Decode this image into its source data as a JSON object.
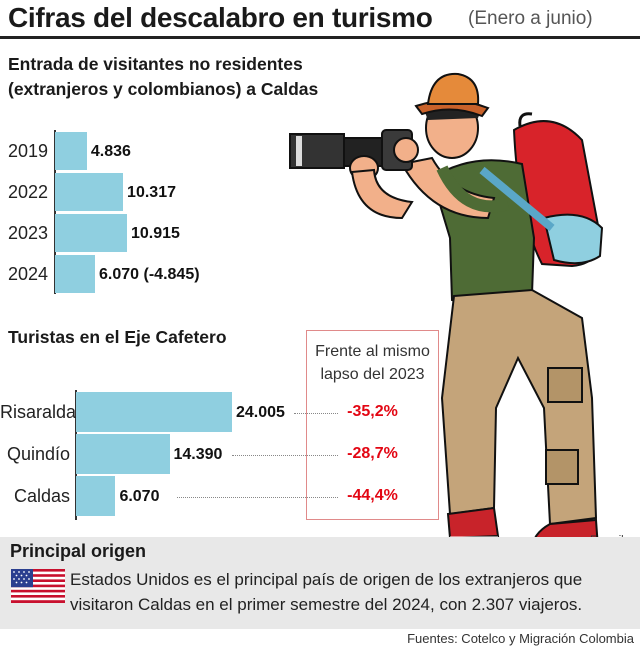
{
  "header": {
    "title": "Cifras del descalabro en turismo",
    "subtitle": "(Enero a junio)"
  },
  "chart_data": [
    {
      "type": "bar",
      "title": "Entrada de visitantes no residentes (extranjeros y colombianos) a Caldas",
      "categories": [
        "2019",
        "2022",
        "2023",
        "2024"
      ],
      "values": [
        4836,
        10317,
        10915,
        6070
      ],
      "value_labels": [
        "4.836",
        "10.317",
        "10.915",
        "6.070 (-4.845)"
      ],
      "orientation": "horizontal",
      "bar_color": "#8fcfe0"
    },
    {
      "type": "bar",
      "title": "Turistas en el Eje Cafetero",
      "categories": [
        "Risaralda",
        "Quindío",
        "Caldas"
      ],
      "values": [
        24005,
        14390,
        6070
      ],
      "value_labels": [
        "24.005",
        "14.390",
        "6.070"
      ],
      "orientation": "horizontal",
      "bar_color": "#8fcfe0",
      "comparison": {
        "header": "Frente al mismo lapso del 2023",
        "values": [
          "-35,2%",
          "-28,7%",
          "-44,4%"
        ],
        "color": "#e30613"
      }
    }
  ],
  "origin": {
    "title": "Principal origen",
    "text": "Estados Unidos es el principal país de origen de los extranjeros que visitaron Caldas en el primer semestre del 2024, con 2.307 viajeros.",
    "flag_icon": "usa-flag-icon"
  },
  "credit": "Freepik",
  "source": "Fuentes: Cotelco y Migración Colombia"
}
